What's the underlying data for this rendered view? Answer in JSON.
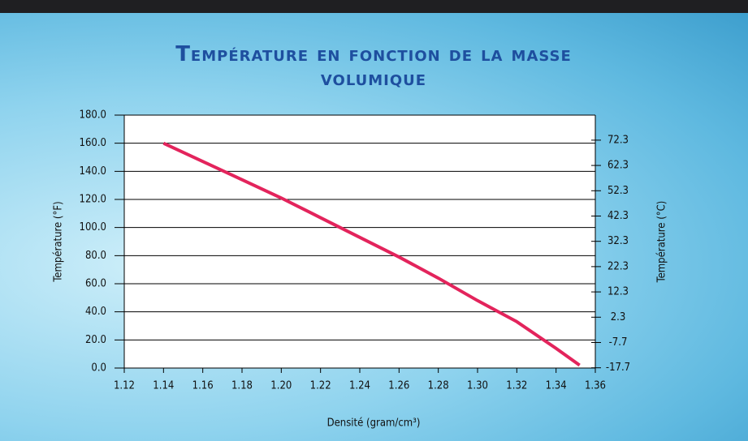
{
  "chart_data": {
    "type": "line",
    "title": "Température en fonction de la masse volumique",
    "x_label": "Densité (gram/cm³)",
    "y_label": "Température (°F)",
    "y2_label": "Température (°C)",
    "xlim": [
      1.12,
      1.36
    ],
    "xticks": [
      1.12,
      1.14,
      1.16,
      1.18,
      {
        "value": 1.2,
        "label": "1.20"
      },
      1.22,
      1.24,
      1.26,
      1.28,
      {
        "value": 1.3,
        "label": "1.30"
      },
      1.32,
      1.34,
      1.36
    ],
    "ylim": [
      0,
      180
    ],
    "yticks": [
      {
        "value": 0,
        "label": "0.0"
      },
      {
        "value": 20,
        "label": "20.0"
      },
      {
        "value": 40,
        "label": "40.0"
      },
      {
        "value": 60,
        "label": "60.0"
      },
      {
        "value": 80,
        "label": "80.0"
      },
      {
        "value": 100,
        "label": "100.0"
      },
      {
        "value": 120,
        "label": "120.0"
      },
      {
        "value": 140,
        "label": "140.0"
      },
      {
        "value": 160,
        "label": "160.0"
      },
      {
        "value": 180,
        "label": "180.0"
      }
    ],
    "y2lim": [
      -17.8,
      82.2
    ],
    "y2ticks": [
      -17.7,
      -7.7,
      2.3,
      12.3,
      22.3,
      32.3,
      42.3,
      52.3,
      62.3,
      72.3
    ],
    "grid": true,
    "series": [
      {
        "color": "#e3245c",
        "x": [
          1.14,
          1.16,
          1.18,
          1.2,
          1.22,
          1.24,
          1.26,
          1.28,
          1.3,
          1.32,
          1.34,
          1.352
        ],
        "values": [
          160,
          147,
          134,
          121,
          107,
          93,
          79,
          64,
          48,
          33,
          14,
          2
        ]
      }
    ]
  }
}
